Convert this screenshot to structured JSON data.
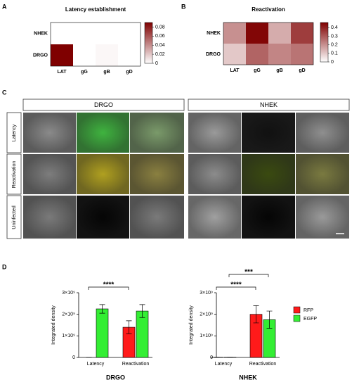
{
  "panels": [
    "A",
    "B",
    "C",
    "D"
  ],
  "micrographs": {
    "columns": [
      "DRGO",
      "NHEK"
    ],
    "rows": [
      "Latency",
      "Reactivation",
      "Uninfected"
    ]
  },
  "chart_data": [
    {
      "type": "heatmap",
      "title": "Latency establishment",
      "x": [
        "LAT",
        "gG",
        "gB",
        "gD"
      ],
      "y": [
        "NHEK",
        "DRGO"
      ],
      "values": [
        [
          0,
          0,
          0,
          0
        ],
        [
          0.09,
          0,
          0.003,
          0
        ]
      ],
      "colors": [
        "#ffffff",
        "#7f0000"
      ],
      "zlim": [
        0,
        0.09
      ],
      "zticks": [
        0,
        0.02,
        0.04,
        0.06,
        0.08
      ]
    },
    {
      "type": "heatmap",
      "title": "Reactivation",
      "x": [
        "LAT",
        "gG",
        "gB",
        "gD"
      ],
      "y": [
        "NHEK",
        "DRGO"
      ],
      "values": [
        [
          0.2,
          0.45,
          0.15,
          0.35
        ],
        [
          0.1,
          0.28,
          0.22,
          0.25
        ]
      ],
      "colors": [
        "#ffffff",
        "#7f0000"
      ],
      "zlim": [
        0,
        0.46
      ],
      "zticks": [
        0,
        0.1,
        0.2,
        0.3,
        0.4
      ]
    },
    {
      "type": "bar",
      "title": "DRGO",
      "y_label": "Integrated density",
      "categories": [
        "Latency",
        "Reactivation"
      ],
      "series": [
        {
          "name": "RFP",
          "color": "#ff1a1a",
          "values": [
            0,
            1400000000
          ],
          "errors": [
            0,
            300000000
          ]
        },
        {
          "name": "EGFP",
          "color": "#33ee33",
          "values": [
            2250000000,
            2150000000
          ],
          "errors": [
            200000000,
            300000000
          ]
        }
      ],
      "ylim": [
        0,
        3000000000
      ],
      "yticks": [
        0,
        {
          "value": 1000000000,
          "label": "1×10⁹"
        },
        {
          "value": 2000000000,
          "label": "2×10⁹"
        },
        {
          "value": 3000000000,
          "label": "3×10⁹"
        }
      ],
      "annotations": [
        "****"
      ]
    },
    {
      "type": "bar",
      "title": "NHEK",
      "y_label": "Integrated density",
      "categories": [
        "Latency",
        "Reactivation"
      ],
      "series": [
        {
          "name": "RFP",
          "color": "#ff1a1a",
          "values": [
            10000000,
            2000000000
          ],
          "errors": [
            0,
            400000000
          ]
        },
        {
          "name": "EGFP",
          "color": "#33ee33",
          "values": [
            10000000,
            1750000000
          ],
          "errors": [
            0,
            400000000
          ]
        }
      ],
      "ylim": [
        0,
        3000000000
      ],
      "yticks": [
        0,
        {
          "value": 1000000000,
          "label": "1×10⁹"
        },
        {
          "value": 2000000000,
          "label": "2×10⁹"
        },
        {
          "value": 3000000000,
          "label": "3×10⁹"
        }
      ],
      "annotations": [
        "****",
        "***"
      ],
      "legend": "right"
    }
  ]
}
